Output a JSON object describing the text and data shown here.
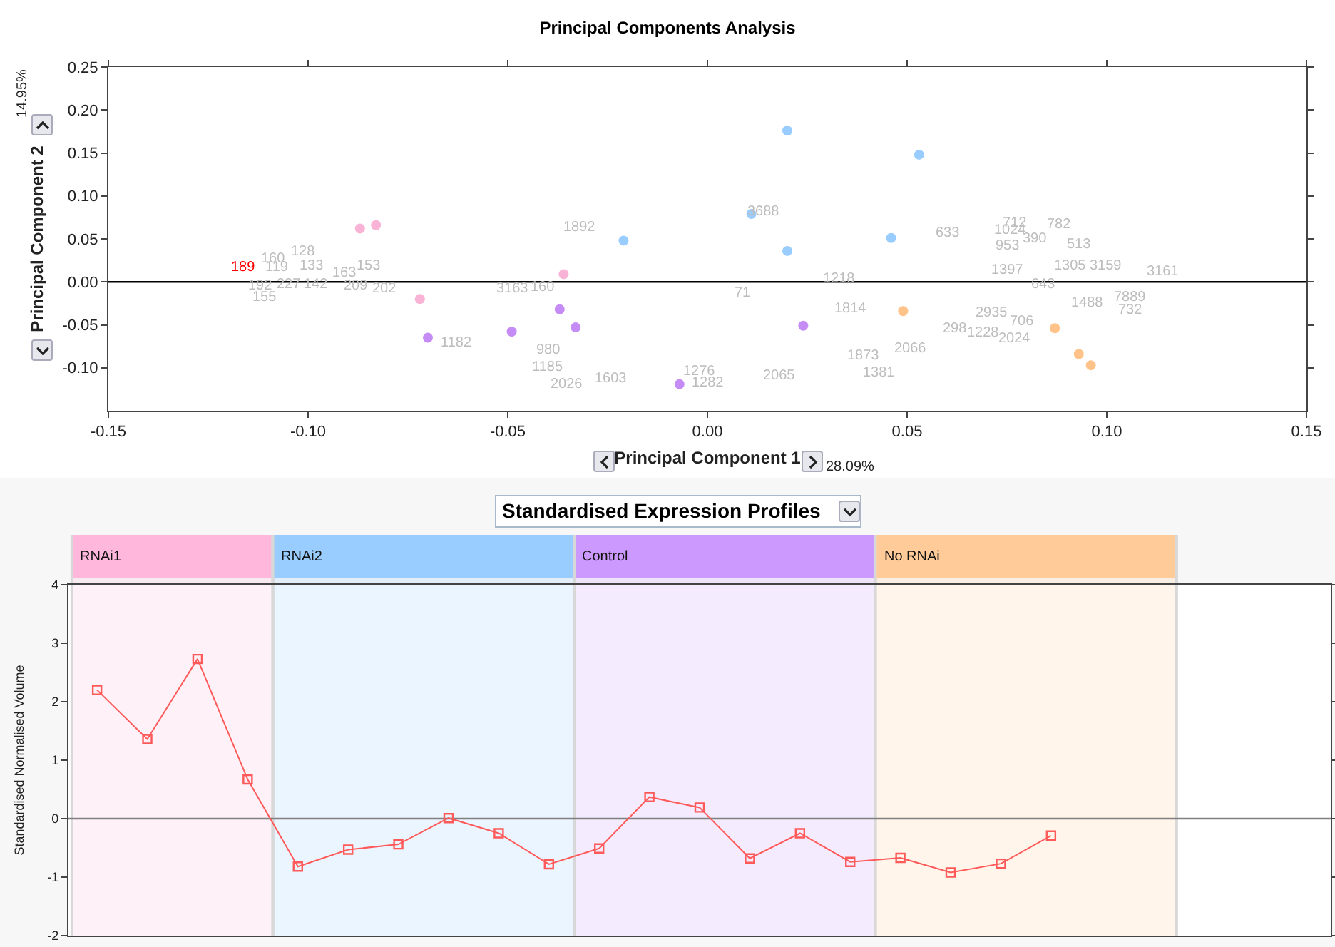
{
  "chart_data": [
    {
      "type": "scatter",
      "title": "Principal Components Analysis",
      "xlabel": "Principal Component 1",
      "ylabel": "Principal Component 2",
      "xlim": [
        -0.15,
        0.15
      ],
      "xticks": [
        {
          "value": -0.15,
          "label": "-0.15"
        },
        {
          "value": -0.1,
          "label": "-0.10"
        },
        {
          "value": -0.05,
          "label": "-0.05"
        },
        {
          "value": 0,
          "label": "0.00"
        },
        {
          "value": 0.05,
          "label": "0.05"
        },
        {
          "value": 0.1,
          "label": "0.10"
        },
        {
          "value": 0.15,
          "label": "0.15"
        }
      ],
      "ylim": [
        -0.15,
        0.25
      ],
      "yticks": [
        {
          "value": -0.1,
          "label": "-0.10"
        },
        {
          "value": -0.05,
          "label": "-0.05"
        },
        {
          "value": 0,
          "label": "0.00"
        },
        {
          "value": 0.05,
          "label": "0.05"
        },
        {
          "value": 0.1,
          "label": "0.10"
        },
        {
          "value": 0.15,
          "label": "0.15"
        },
        {
          "value": 0.2,
          "label": "0.20"
        },
        {
          "value": 0.25,
          "label": "0.25"
        }
      ],
      "marker": "circle",
      "grid": false,
      "ref_lines": [
        {
          "axis": "y",
          "value": 0,
          "color": "#000000"
        }
      ],
      "series": [
        {
          "color": "#f9b3d6",
          "x": [
            -0.087,
            -0.083,
            -0.072,
            -0.036
          ],
          "values": [
            0.062,
            0.066,
            -0.02,
            0.009
          ]
        },
        {
          "color": "#99ccff",
          "x": [
            -0.021,
            0.02,
            0.053,
            0.011,
            0.02,
            0.046
          ],
          "values": [
            0.048,
            0.176,
            0.148,
            0.079,
            0.036,
            0.051
          ]
        },
        {
          "color": "#c58cf5",
          "x": [
            -0.07,
            -0.049,
            -0.037,
            -0.033,
            0.024,
            -0.007
          ],
          "values": [
            -0.065,
            -0.058,
            -0.032,
            -0.053,
            -0.051,
            -0.119
          ]
        },
        {
          "color": "#ffc38a",
          "x": [
            0.049,
            0.087,
            0.093,
            0.096
          ],
          "values": [
            -0.034,
            -0.054,
            -0.084,
            -0.097
          ]
        }
      ],
      "annotations": [
        "28.09%",
        "14.95%",
        "189",
        "160",
        "119",
        "128",
        "133",
        "163",
        "153",
        "192",
        "227",
        "142",
        "209",
        "202",
        "155",
        "1182",
        "1892",
        "3163",
        "160",
        "980",
        "1185",
        "2026",
        "1603",
        "3688",
        "633",
        "712",
        "1024",
        "782",
        "390",
        "953",
        "513",
        "1397",
        "1305",
        "3159",
        "3161",
        "643",
        "1218",
        "71",
        "1814",
        "1488",
        "7889",
        "732",
        "2935",
        "706",
        "298",
        "1228",
        "2024",
        "2066",
        "1873",
        "1381",
        "2065",
        "1276",
        "1282"
      ]
    },
    {
      "type": "line",
      "title": "Standardised Expression Profiles",
      "ylabel": "Standardised Normalised Volume",
      "categories": [
        null,
        null,
        null,
        null,
        null,
        null,
        null,
        null,
        null,
        null,
        null,
        null,
        null,
        null,
        null,
        null,
        null,
        null,
        null,
        null
      ],
      "ylim": [
        -2,
        4
      ],
      "yticks": [
        -2,
        -1,
        0,
        1,
        2,
        3,
        4
      ],
      "tick_labels": "y",
      "marker": "square",
      "line_style": "solid",
      "grid": false,
      "series": [
        {
          "color": "#ff5a5a",
          "values": [
            2.2,
            1.36,
            2.73,
            0.67,
            -0.82,
            -0.53,
            -0.44,
            0.01,
            -0.25,
            -0.78,
            -0.51,
            0.37,
            0.19,
            -0.68,
            -0.25,
            -0.74,
            -0.67,
            -0.92,
            -0.77,
            -0.29
          ]
        }
      ],
      "annotations": [
        "RNAi1",
        "RNAi2",
        "Control",
        "No RNAi"
      ],
      "ref_lines": [
        {
          "axis": "y",
          "value": 0,
          "color": "#808080"
        }
      ]
    }
  ]
}
